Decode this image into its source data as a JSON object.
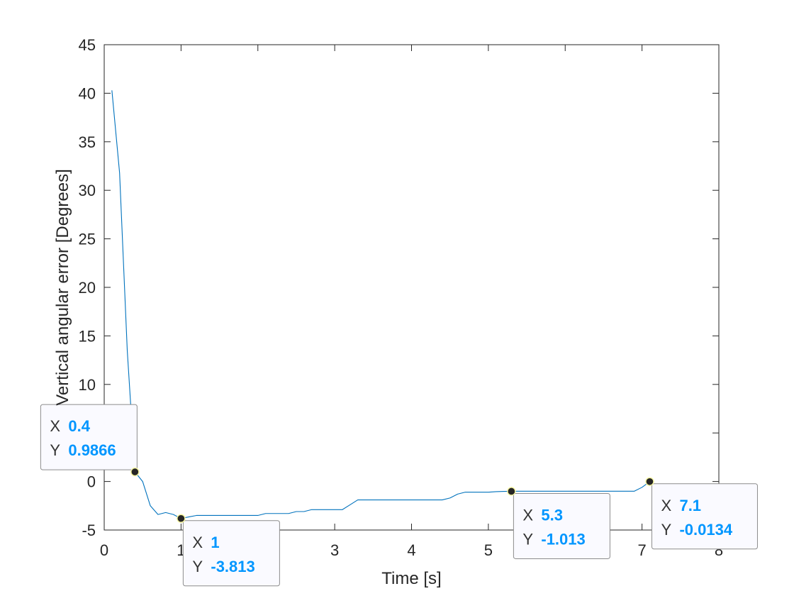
{
  "chart_data": {
    "type": "line",
    "title": "",
    "xlabel": "Time [s]",
    "ylabel": "Vertical angular error [Degrees]",
    "xlim": [
      0,
      8
    ],
    "ylim": [
      -5,
      45
    ],
    "x_ticks": [
      0,
      1,
      2,
      3,
      4,
      5,
      6,
      7,
      8
    ],
    "y_ticks": [
      -5,
      0,
      5,
      10,
      15,
      20,
      25,
      30,
      35,
      40,
      45
    ],
    "grid": false,
    "line_color": "#0072BD",
    "series": [
      {
        "x": [
          0.1,
          0.2,
          0.3,
          0.4,
          0.5,
          0.6,
          0.7,
          0.8,
          0.9,
          1.0,
          1.1,
          1.2,
          1.3,
          1.4,
          1.5,
          1.6,
          1.7,
          1.8,
          1.9,
          2.0,
          2.1,
          2.2,
          2.3,
          2.4,
          2.5,
          2.6,
          2.7,
          2.8,
          2.9,
          3.0,
          3.1,
          3.2,
          3.3,
          3.4,
          3.5,
          3.6,
          3.7,
          3.8,
          3.9,
          4.0,
          4.1,
          4.2,
          4.3,
          4.4,
          4.5,
          4.6,
          4.7,
          4.8,
          4.9,
          5.0,
          5.1,
          5.2,
          5.3,
          5.4,
          5.5,
          5.6,
          5.7,
          5.8,
          5.9,
          6.0,
          6.1,
          6.2,
          6.3,
          6.4,
          6.5,
          6.6,
          6.7,
          6.8,
          6.9,
          7.0,
          7.1
        ],
        "y": [
          40.3,
          31.8,
          13.5,
          0.9866,
          0.0,
          -2.5,
          -3.4,
          -3.2,
          -3.4,
          -3.813,
          -3.65,
          -3.5,
          -3.5,
          -3.5,
          -3.5,
          -3.5,
          -3.5,
          -3.5,
          -3.5,
          -3.5,
          -3.3,
          -3.3,
          -3.3,
          -3.3,
          -3.1,
          -3.1,
          -2.9,
          -2.9,
          -2.9,
          -2.9,
          -2.9,
          -2.4,
          -1.9,
          -1.9,
          -1.9,
          -1.9,
          -1.9,
          -1.9,
          -1.9,
          -1.9,
          -1.9,
          -1.9,
          -1.9,
          -1.9,
          -1.7,
          -1.3,
          -1.1,
          -1.1,
          -1.1,
          -1.1,
          -1.05,
          -1.02,
          -1.013,
          -1.0,
          -1.0,
          -1.0,
          -1.0,
          -1.0,
          -1.0,
          -1.0,
          -1.0,
          -1.0,
          -1.0,
          -1.0,
          -1.0,
          -1.0,
          -1.0,
          -1.0,
          -1.0,
          -0.6,
          -0.0134
        ]
      }
    ],
    "datatips": [
      {
        "x_key": "X",
        "y_key": "Y",
        "x": "0.4",
        "y": "0.9866",
        "px": 0.4,
        "py": 0.9866,
        "anchor": "upper-left"
      },
      {
        "x_key": "X",
        "y_key": "Y",
        "x": "1",
        "y": "-3.813",
        "px": 1.0,
        "py": -3.813,
        "anchor": "lower-right"
      },
      {
        "x_key": "X",
        "y_key": "Y",
        "x": "5.3",
        "y": "-1.013",
        "px": 5.3,
        "py": -1.013,
        "anchor": "lower-right"
      },
      {
        "x_key": "X",
        "y_key": "Y",
        "x": "7.1",
        "y": "-0.0134",
        "px": 7.1,
        "py": -0.0134,
        "anchor": "lower-right"
      }
    ],
    "datatip_value_color": "#0096FF"
  }
}
